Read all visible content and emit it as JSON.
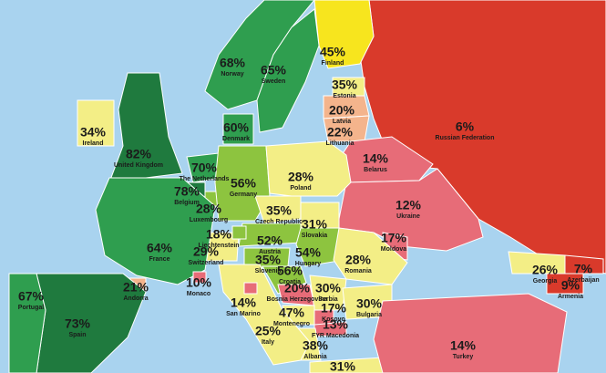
{
  "map": {
    "countries": [
      {
        "name": "Russian Federation",
        "value": 6,
        "value_label": "6%",
        "color": "#d93a2b"
      },
      {
        "name": "Finland",
        "value": 45,
        "value_label": "45%",
        "color": "#f7e51e"
      },
      {
        "name": "Norway",
        "value": 68,
        "value_label": "68%",
        "color": "#2f9e4f"
      },
      {
        "name": "Sweden",
        "value": 65,
        "value_label": "65%",
        "color": "#2f9e4f"
      },
      {
        "name": "Estonia",
        "value": 35,
        "value_label": "35%",
        "color": "#f3ee86"
      },
      {
        "name": "Latvia",
        "value": 20,
        "value_label": "20%",
        "color": "#f4b48c"
      },
      {
        "name": "Lithuania",
        "value": 22,
        "value_label": "22%",
        "color": "#f4b48c"
      },
      {
        "name": "Belarus",
        "value": 14,
        "value_label": "14%",
        "color": "#e76c78"
      },
      {
        "name": "Ukraine",
        "value": 12,
        "value_label": "12%",
        "color": "#e76c78"
      },
      {
        "name": "Moldova",
        "value": 17,
        "value_label": "17%",
        "color": "#e76c78"
      },
      {
        "name": "United Kingdom",
        "value": 82,
        "value_label": "82%",
        "color": "#1f7a3e"
      },
      {
        "name": "Ireland",
        "value": 34,
        "value_label": "34%",
        "color": "#f3ee86"
      },
      {
        "name": "Denmark",
        "value": 60,
        "value_label": "60%",
        "color": "#2f9e4f"
      },
      {
        "name": "The Netherlands",
        "value": 70,
        "value_label": "70%",
        "color": "#2f9e4f"
      },
      {
        "name": "Belgium",
        "value": 78,
        "value_label": "78%",
        "color": "#1f7a3e"
      },
      {
        "name": "Luxembourg",
        "value": 28,
        "value_label": "28%",
        "color": "#8dc43f"
      },
      {
        "name": "Germany",
        "value": 56,
        "value_label": "56%",
        "color": "#8dc43f"
      },
      {
        "name": "Poland",
        "value": 28,
        "value_label": "28%",
        "color": "#f3ee86"
      },
      {
        "name": "Czech Republic",
        "value": 35,
        "value_label": "35%",
        "color": "#f3ee86"
      },
      {
        "name": "Slovakia",
        "value": 31,
        "value_label": "31%",
        "color": "#f3ee86"
      },
      {
        "name": "Austria",
        "value": 52,
        "value_label": "52%",
        "color": "#8dc43f"
      },
      {
        "name": "Hungary",
        "value": 54,
        "value_label": "54%",
        "color": "#8dc43f"
      },
      {
        "name": "Romania",
        "value": 28,
        "value_label": "28%",
        "color": "#f3ee86"
      },
      {
        "name": "Switzerland",
        "value": 29,
        "value_label": "29%",
        "color": "#f3ee86"
      },
      {
        "name": "Liechtenstein",
        "value": 18,
        "value_label": "18%",
        "color": "#8dc43f"
      },
      {
        "name": "France",
        "value": 64,
        "value_label": "64%",
        "color": "#2f9e4f"
      },
      {
        "name": "Slovenia",
        "value": 35,
        "value_label": "35%",
        "color": "#8dc43f"
      },
      {
        "name": "Croatia",
        "value": 56,
        "value_label": "56%",
        "color": "#8dc43f"
      },
      {
        "name": "Bosnia Herzegovina",
        "value": 20,
        "value_label": "20%",
        "color": "#e76c78"
      },
      {
        "name": "Serbia",
        "value": 30,
        "value_label": "30%",
        "color": "#f3ee86"
      },
      {
        "name": "Montenegro",
        "value": 47,
        "value_label": "47%",
        "color": "#f3ee86"
      },
      {
        "name": "Kosovo",
        "value": 17,
        "value_label": "17%",
        "color": "#e76c78"
      },
      {
        "name": "Bulgaria",
        "value": 30,
        "value_label": "30%",
        "color": "#f3ee86"
      },
      {
        "name": "FYR Macedonia",
        "value": 13,
        "value_label": "13%",
        "color": "#e76c78"
      },
      {
        "name": "Albania",
        "value": 38,
        "value_label": "38%",
        "color": "#f3ee86"
      },
      {
        "name": "Greece",
        "value": 31,
        "value_label": "31%",
        "color": "#f3ee86"
      },
      {
        "name": "Turkey",
        "value": 14,
        "value_label": "14%",
        "color": "#e76c78"
      },
      {
        "name": "Georgia",
        "value": 26,
        "value_label": "26%",
        "color": "#f3ee86"
      },
      {
        "name": "Azerbaijan",
        "value": 7,
        "value_label": "7%",
        "color": "#d93a2b"
      },
      {
        "name": "Armenia",
        "value": 9,
        "value_label": "9%",
        "color": "#d93a2b"
      },
      {
        "name": "Italy",
        "value": 25,
        "value_label": "25%",
        "color": "#f3ee86"
      },
      {
        "name": "San Marino",
        "value": 14,
        "value_label": "14%",
        "color": "#e76c78"
      },
      {
        "name": "Monaco",
        "value": 10,
        "value_label": "10%",
        "color": "#e76c78"
      },
      {
        "name": "Andorra",
        "value": 21,
        "value_label": "21%",
        "color": "#f4b48c"
      },
      {
        "name": "Spain",
        "value": 73,
        "value_label": "73%",
        "color": "#1f7a3e"
      },
      {
        "name": "Portugal",
        "value": 67,
        "value_label": "67%",
        "color": "#2f9e4f"
      }
    ]
  }
}
